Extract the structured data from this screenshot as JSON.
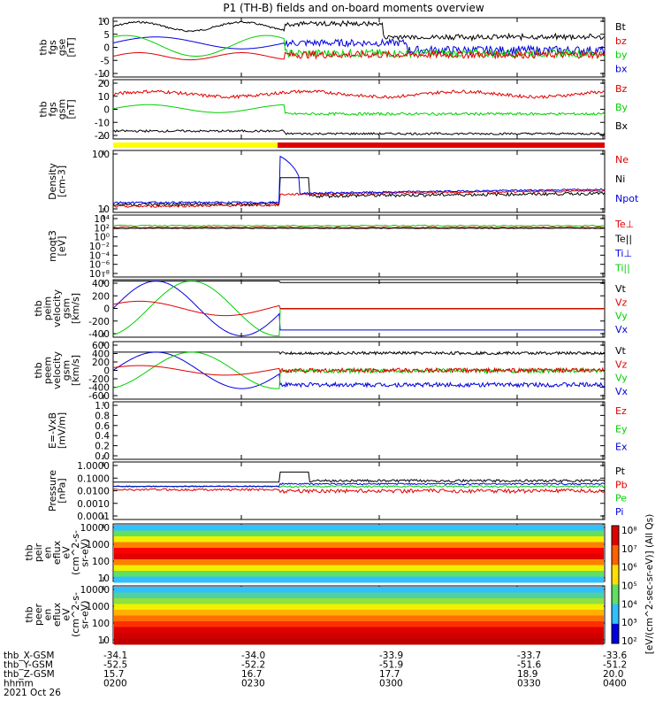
{
  "title": "P1 (TH-B) fields and on-board moments overview",
  "colors": {
    "black": "#000000",
    "red": "#e00000",
    "green": "#00d000",
    "blue": "#0000e0",
    "yellow": "#ffff00",
    "bar_red": "#e00000"
  },
  "chart_data": [
    {
      "type": "line",
      "ylabel": [
        "thb",
        "fgs",
        "gse",
        "[nT]"
      ],
      "ylim": [
        -10,
        10
      ],
      "yticks": [
        "10",
        "5",
        "0",
        "-5",
        "-10"
      ],
      "legend": [
        {
          "text": "Bt",
          "color": "black"
        },
        {
          "text": "bz",
          "color": "red"
        },
        {
          "text": "by",
          "color": "green"
        },
        {
          "text": "bx",
          "color": "blue"
        }
      ]
    },
    {
      "type": "line",
      "ylabel": [
        "thb",
        "fgs",
        "gsm",
        "[nT]"
      ],
      "ylim": [
        -25,
        20
      ],
      "yticks": [
        "20",
        "10",
        "0",
        "-10",
        "-20"
      ],
      "legend": [
        {
          "text": "Bz",
          "color": "red"
        },
        {
          "text": "By",
          "color": "green"
        },
        {
          "text": "Bx",
          "color": "black"
        }
      ]
    },
    {
      "type": "line",
      "ylabel": [
        "Density",
        "[cm-3]"
      ],
      "ylim": [
        4,
        300
      ],
      "log": true,
      "yticks": [
        "100",
        "10"
      ],
      "legend": [
        {
          "text": "Ne",
          "color": "red"
        },
        {
          "text": "Ni",
          "color": "black"
        },
        {
          "text": "Npot",
          "color": "blue"
        }
      ]
    },
    {
      "type": "line",
      "ylabel": [
        "moqt3",
        "[eV]"
      ],
      "yticks": [
        "10⁴",
        "10²",
        "10⁰",
        "10⁻²",
        "10⁻⁴",
        "10⁻⁶",
        "10⁻⁸"
      ],
      "legend": [
        {
          "text": "Te⊥",
          "color": "red"
        },
        {
          "text": "Te||",
          "color": "black"
        },
        {
          "text": "Ti⊥",
          "color": "blue"
        },
        {
          "text": "Ti||",
          "color": "green"
        }
      ]
    },
    {
      "type": "line",
      "ylabel": [
        "thb",
        "peim",
        "velocity",
        "gsm",
        "[km/s]"
      ],
      "ylim": [
        -400,
        400
      ],
      "yticks": [
        "400",
        "200",
        "0",
        "-200",
        "-400"
      ],
      "legend": [
        {
          "text": "Vt",
          "color": "black"
        },
        {
          "text": "Vz",
          "color": "red"
        },
        {
          "text": "Vy",
          "color": "green"
        },
        {
          "text": "Vx",
          "color": "blue"
        }
      ]
    },
    {
      "type": "line",
      "ylabel": [
        "thb",
        "peem",
        "velocity",
        "gsm",
        "[km/s]"
      ],
      "ylim": [
        -600,
        600
      ],
      "yticks": [
        "600",
        "400",
        "200",
        "0",
        "-200",
        "-400",
        "-600"
      ],
      "legend": [
        {
          "text": "Vt",
          "color": "black"
        },
        {
          "text": "Vz",
          "color": "red"
        },
        {
          "text": "Vy",
          "color": "green"
        },
        {
          "text": "Vx",
          "color": "blue"
        }
      ]
    },
    {
      "type": "line",
      "ylabel": [
        "E=-VxB",
        "[mV/m]"
      ],
      "ylim": [
        0,
        1
      ],
      "yticks": [
        "1.0",
        "0.8",
        "0.6",
        "0.4",
        "0.2",
        "0.0"
      ],
      "legend": [
        {
          "text": "Ez",
          "color": "red"
        },
        {
          "text": "Ey",
          "color": "green"
        },
        {
          "text": "Ex",
          "color": "blue"
        }
      ]
    },
    {
      "type": "line",
      "ylabel": [
        "Pressure",
        "[nPa]"
      ],
      "log": true,
      "yticks": [
        "1.0000",
        "0.1000",
        "0.0100",
        "0.0010",
        "0.0001"
      ],
      "legend": [
        {
          "text": "Pt",
          "color": "black"
        },
        {
          "text": "Pb",
          "color": "red"
        },
        {
          "text": "Pe",
          "color": "green"
        },
        {
          "text": "Pi",
          "color": "blue"
        }
      ]
    },
    {
      "type": "heatmap",
      "ylabel": [
        "thb",
        "peir",
        "en",
        "eflux",
        "eV",
        "(cm^2-s-",
        "sr-eV)"
      ],
      "yticks": [
        "10000",
        "1000",
        "100",
        "10"
      ]
    },
    {
      "type": "heatmap",
      "ylabel": [
        "thb",
        "peer",
        "en",
        "eflux",
        "eV",
        "(cm^2-s-",
        "sr-eV)"
      ],
      "yticks": [
        "10000",
        "1000",
        "100",
        "10"
      ]
    }
  ],
  "colorbar": {
    "ticks": [
      "10⁸",
      "10⁷",
      "10⁶",
      "10⁵",
      "10⁴",
      "10³",
      "10²"
    ],
    "label": "[eV/(cm^2-sec-sr-eV)] (All Qs)"
  },
  "x_axis": {
    "rows": [
      {
        "label": "thb_X-GSM",
        "values": [
          "-34.1",
          "-34.0",
          "-33.9",
          "-33.7",
          "-33.6"
        ]
      },
      {
        "label": "thb_Y-GSM",
        "values": [
          "-52.5",
          "-52.2",
          "-51.9",
          "-51.6",
          "-51.2"
        ]
      },
      {
        "label": "thb_Z-GSM",
        "values": [
          "15.7",
          "16.7",
          "17.7",
          "18.9",
          "20.0"
        ]
      },
      {
        "label": "hhmm",
        "values": [
          "0200",
          "0230",
          "0300",
          "0330",
          "0400"
        ]
      }
    ],
    "date": "2021 Oct 26"
  }
}
